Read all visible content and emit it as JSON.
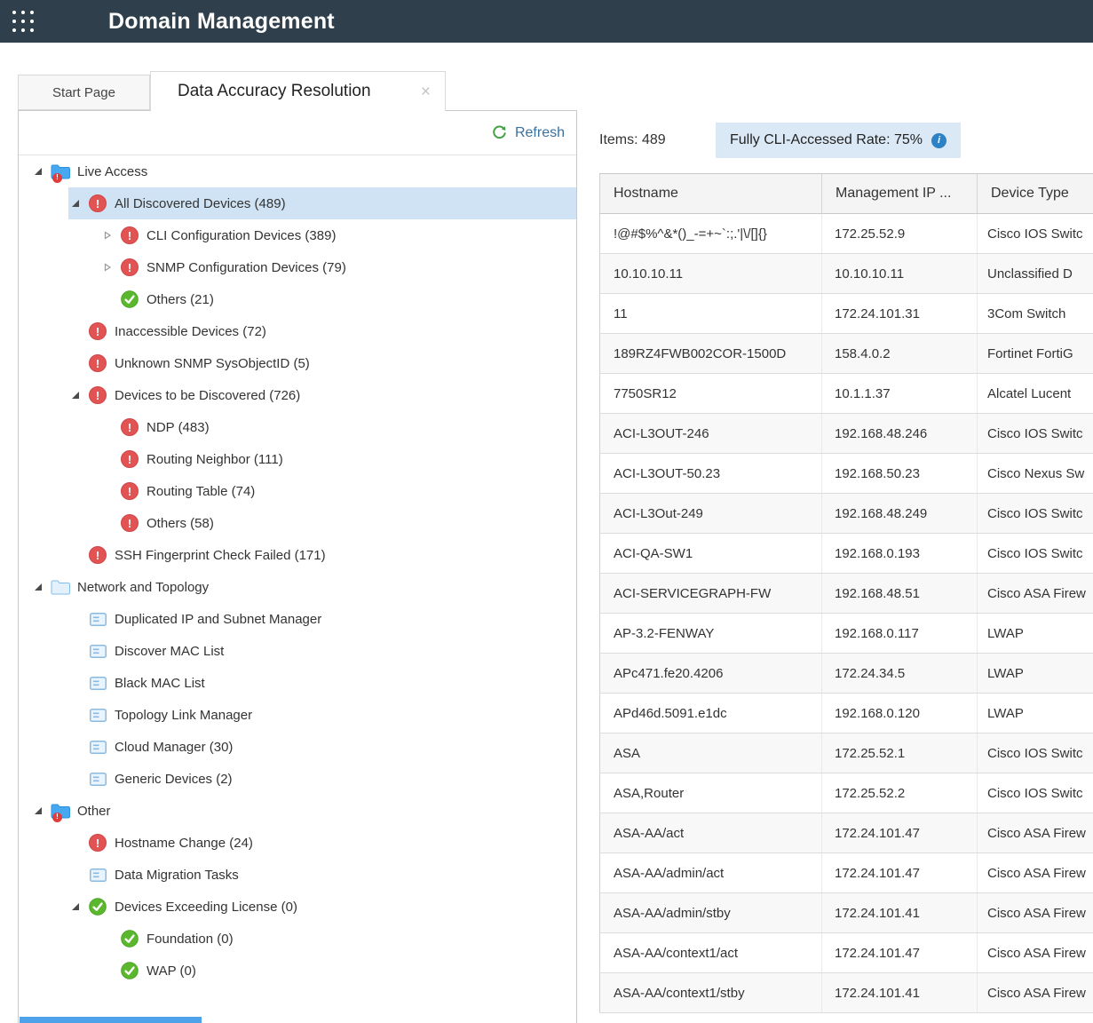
{
  "header": {
    "title": "Domain Management"
  },
  "tabs": {
    "start": {
      "label": "Start Page"
    },
    "active": {
      "label": "Data Accuracy Resolution",
      "close_glyph": "×"
    }
  },
  "left_panel": {
    "refresh_label": "Refresh",
    "tree": [
      {
        "label": "Live Access",
        "level": 0,
        "caret": "open",
        "icon": "folder-alert"
      },
      {
        "label": "All Discovered Devices (489)",
        "level": 1,
        "caret": "open",
        "icon": "error",
        "selected": true
      },
      {
        "label": "CLI Configuration Devices (389)",
        "level": 2,
        "caret": "closed",
        "icon": "error"
      },
      {
        "label": "SNMP Configuration Devices (79)",
        "level": 2,
        "caret": "closed",
        "icon": "error"
      },
      {
        "label": "Others (21)",
        "level": 2,
        "caret": "none",
        "icon": "check"
      },
      {
        "label": "Inaccessible Devices (72)",
        "level": 1,
        "caret": "none",
        "icon": "error"
      },
      {
        "label": "Unknown SNMP SysObjectID (5)",
        "level": 1,
        "caret": "none",
        "icon": "error"
      },
      {
        "label": "Devices to be Discovered (726)",
        "level": 1,
        "caret": "open",
        "icon": "error"
      },
      {
        "label": "NDP (483)",
        "level": 2,
        "caret": "none",
        "icon": "error"
      },
      {
        "label": "Routing Neighbor (111)",
        "level": 2,
        "caret": "none",
        "icon": "error"
      },
      {
        "label": "Routing Table (74)",
        "level": 2,
        "caret": "none",
        "icon": "error"
      },
      {
        "label": "Others (58)",
        "level": 2,
        "caret": "none",
        "icon": "error"
      },
      {
        "label": "SSH Fingerprint Check Failed (171)",
        "level": 1,
        "caret": "none",
        "icon": "error"
      },
      {
        "label": "Network and Topology",
        "level": 0,
        "caret": "open",
        "icon": "folder-open"
      },
      {
        "label": "Duplicated IP and Subnet Manager",
        "level": 1,
        "caret": "none",
        "icon": "list"
      },
      {
        "label": "Discover MAC List",
        "level": 1,
        "caret": "none",
        "icon": "list"
      },
      {
        "label": "Black MAC List",
        "level": 1,
        "caret": "none",
        "icon": "list"
      },
      {
        "label": "Topology Link Manager",
        "level": 1,
        "caret": "none",
        "icon": "list"
      },
      {
        "label": "Cloud Manager (30)",
        "level": 1,
        "caret": "none",
        "icon": "list"
      },
      {
        "label": "Generic Devices (2)",
        "level": 1,
        "caret": "none",
        "icon": "list"
      },
      {
        "label": "Other",
        "level": 0,
        "caret": "open",
        "icon": "folder-alert"
      },
      {
        "label": "Hostname Change (24)",
        "level": 1,
        "caret": "none",
        "icon": "error"
      },
      {
        "label": "Data Migration Tasks",
        "level": 1,
        "caret": "none",
        "icon": "list"
      },
      {
        "label": "Devices Exceeding License (0)",
        "level": 1,
        "caret": "open",
        "icon": "check"
      },
      {
        "label": "Foundation (0)",
        "level": 2,
        "caret": "none",
        "icon": "check"
      },
      {
        "label": "WAP (0)",
        "level": 2,
        "caret": "none",
        "icon": "check"
      }
    ]
  },
  "right_panel": {
    "items_label": "Items: 489",
    "cli_badge_label": "Fully CLI-Accessed Rate: 75%",
    "table": {
      "columns": [
        "Hostname",
        "Management IP ...",
        "Device Type"
      ],
      "rows": [
        [
          "!@#$%^&*()_-=+~`:;.'|\\/[]{}",
          "172.25.52.9",
          "Cisco IOS Switc"
        ],
        [
          "10.10.10.11",
          "10.10.10.11",
          "Unclassified D"
        ],
        [
          "11",
          "172.24.101.31",
          "3Com Switch"
        ],
        [
          "189RZ4FWB002COR-1500D",
          "158.4.0.2",
          "Fortinet FortiG"
        ],
        [
          "7750SR12",
          "10.1.1.37",
          "Alcatel Lucent"
        ],
        [
          "ACI-L3OUT-246",
          "192.168.48.246",
          "Cisco IOS Switc"
        ],
        [
          "ACI-L3OUT-50.23",
          "192.168.50.23",
          "Cisco Nexus Sw"
        ],
        [
          "ACI-L3Out-249",
          "192.168.48.249",
          "Cisco IOS Switc"
        ],
        [
          "ACI-QA-SW1",
          "192.168.0.193",
          "Cisco IOS Switc"
        ],
        [
          "ACI-SERVICEGRAPH-FW",
          "192.168.48.51",
          "Cisco ASA Firew"
        ],
        [
          "AP-3.2-FENWAY",
          "192.168.0.117",
          "LWAP"
        ],
        [
          "APc471.fe20.4206",
          "172.24.34.5",
          "LWAP"
        ],
        [
          "APd46d.5091.e1dc",
          "192.168.0.120",
          "LWAP"
        ],
        [
          "ASA",
          "172.25.52.1",
          "Cisco IOS Switc"
        ],
        [
          "ASA,Router",
          "172.25.52.2",
          "Cisco IOS Switc"
        ],
        [
          "ASA-AA/act",
          "172.24.101.47",
          "Cisco ASA Firew"
        ],
        [
          "ASA-AA/admin/act",
          "172.24.101.47",
          "Cisco ASA Firew"
        ],
        [
          "ASA-AA/admin/stby",
          "172.24.101.41",
          "Cisco ASA Firew"
        ],
        [
          "ASA-AA/context1/act",
          "172.24.101.47",
          "Cisco ASA Firew"
        ],
        [
          "ASA-AA/context1/stby",
          "172.24.101.41",
          "Cisco ASA Firew"
        ]
      ]
    }
  },
  "colors": {
    "header_bg": "#2f404c",
    "selected_row": "#cfe3f4",
    "badge_bg": "#dbe9f6",
    "error_red": "#e25353",
    "check_green": "#5bb72e",
    "folder_blue": "#46a8f1",
    "refresh_green": "#43a047",
    "link_blue": "#3a719f",
    "info_blue": "#2d81c5",
    "tree_scrollbar_blue": "#4da2ea"
  }
}
